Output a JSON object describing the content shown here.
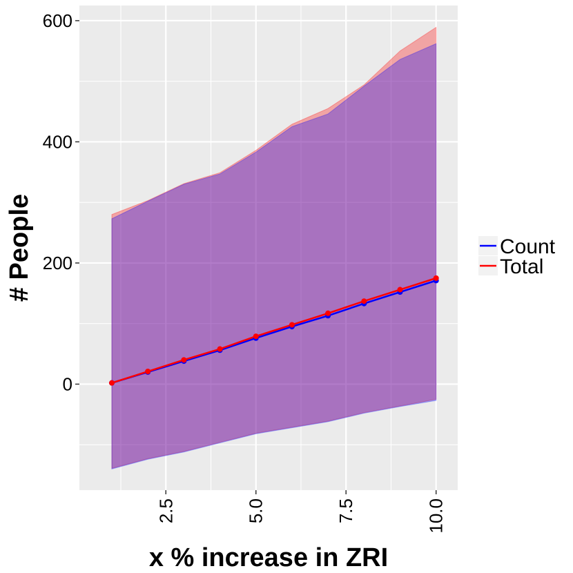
{
  "chart_data": {
    "type": "line",
    "title": "",
    "xlabel": "x % increase in ZRI",
    "ylabel": "# People",
    "xlim": [
      0.1,
      10.6
    ],
    "ylim": [
      -175,
      625
    ],
    "x_ticks": [
      {
        "value": 2.5,
        "label": "2.5"
      },
      {
        "value": 5.0,
        "label": "5.0"
      },
      {
        "value": 7.5,
        "label": "7.5"
      },
      {
        "value": 10.0,
        "label": "10.0"
      }
    ],
    "y_ticks": [
      {
        "value": 0,
        "label": "0"
      },
      {
        "value": 200,
        "label": "200"
      },
      {
        "value": 400,
        "label": "400"
      },
      {
        "value": 600,
        "label": "600"
      }
    ],
    "grid": true,
    "legend_position": "right",
    "x": [
      1,
      2,
      3,
      4,
      5,
      6,
      7,
      8,
      9,
      10
    ],
    "series": [
      {
        "name": "Count",
        "color": "#0000ff",
        "values": [
          2,
          20,
          38,
          56,
          76,
          95,
          113,
          133,
          152,
          171
        ],
        "upper": [
          273,
          302,
          330,
          347,
          383,
          425,
          446,
          492,
          536,
          562
        ],
        "lower": [
          -140,
          -124,
          -112,
          -97,
          -82,
          -72,
          -62,
          -48,
          -37,
          -27
        ]
      },
      {
        "name": "Total",
        "color": "#ff0000",
        "values": [
          2,
          21,
          40,
          58,
          79,
          98,
          117,
          137,
          156,
          175
        ],
        "upper": [
          280,
          303,
          331,
          349,
          386,
          429,
          455,
          494,
          550,
          589
        ],
        "lower": [
          -139,
          -123,
          -111,
          -96,
          -81,
          -71,
          -61,
          -47,
          -36,
          -25
        ]
      }
    ]
  }
}
